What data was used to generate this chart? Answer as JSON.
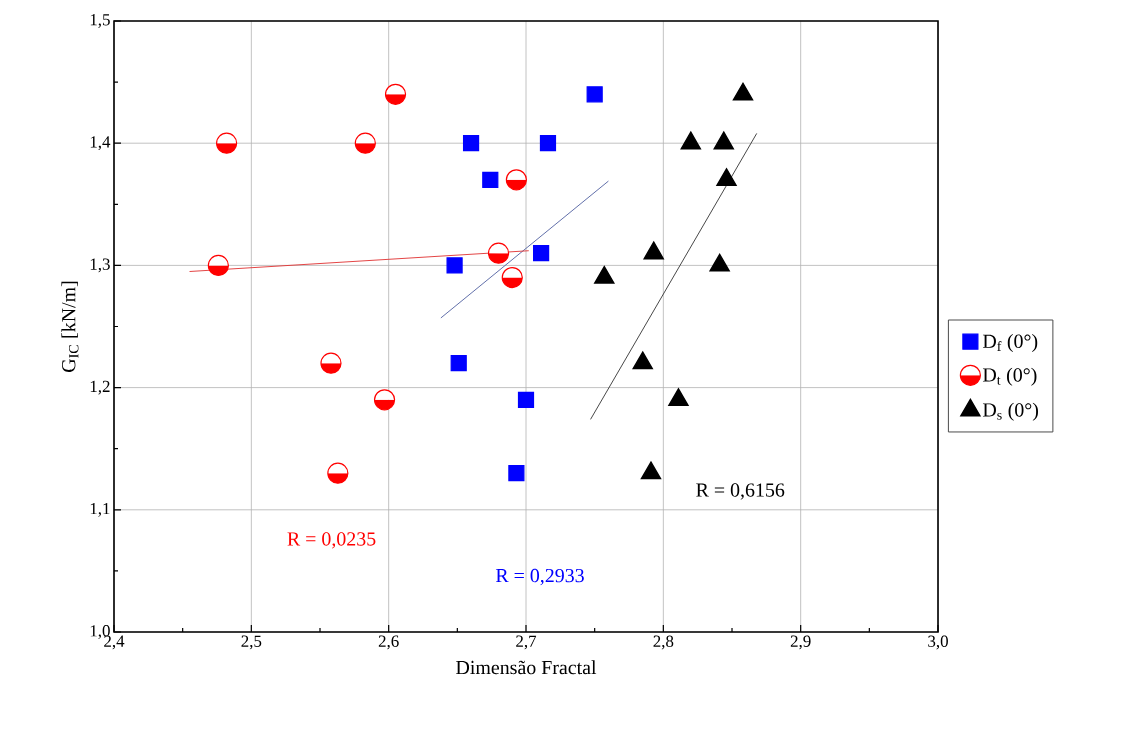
{
  "chart_data": {
    "type": "scatter",
    "xlabel": "Dimensão Fractal",
    "ylabel": "G$_{IC}$ [kN/m]",
    "xlim": [
      2.4,
      3.0
    ],
    "ylim": [
      1.0,
      1.5
    ],
    "xticks": [
      {
        "value": 2.4,
        "label": "2,4"
      },
      {
        "value": 2.5,
        "label": "2,5"
      },
      {
        "value": 2.6,
        "label": "2,6"
      },
      {
        "value": 2.7,
        "label": "2,7"
      },
      {
        "value": 2.8,
        "label": "2,8"
      },
      {
        "value": 2.9,
        "label": "2,9"
      },
      {
        "value": 3.0,
        "label": "3,0"
      }
    ],
    "yticks": [
      {
        "value": 1.0,
        "label": "1,0"
      },
      {
        "value": 1.1,
        "label": "1,1"
      },
      {
        "value": 1.2,
        "label": "1,2"
      },
      {
        "value": 1.3,
        "label": "1,3"
      },
      {
        "value": 1.4,
        "label": "1,4"
      },
      {
        "value": 1.5,
        "label": "1,5"
      }
    ],
    "grid": true,
    "legend": "right",
    "series": [
      {
        "name": "D$_{f}$ (0°)",
        "color": "#0000ff",
        "marker": "square",
        "x": [
          2.66,
          2.674,
          2.648,
          2.651,
          2.75,
          2.716,
          2.711,
          2.7,
          2.693
        ],
        "values": [
          1.4,
          1.37,
          1.3,
          1.22,
          1.44,
          1.4,
          1.31,
          1.19,
          1.13
        ]
      },
      {
        "name": "D$_{t}$ (0°)",
        "color": "#ff0000",
        "marker": "circle",
        "x": [
          2.482,
          2.583,
          2.605,
          2.476,
          2.693,
          2.68,
          2.69,
          2.558,
          2.597,
          2.563
        ],
        "values": [
          1.4,
          1.4,
          1.44,
          1.3,
          1.37,
          1.31,
          1.29,
          1.22,
          1.19,
          1.13
        ]
      },
      {
        "name": "D$_{s}$ (0°)",
        "color": "#000000",
        "marker": "triangle",
        "x": [
          2.858,
          2.82,
          2.844,
          2.846,
          2.793,
          2.757,
          2.841,
          2.785,
          2.811,
          2.791
        ],
        "values": [
          1.44,
          1.4,
          1.4,
          1.37,
          1.31,
          1.29,
          1.3,
          1.22,
          1.19,
          1.13
        ]
      },
      {
        "type": "line",
        "color": "#5060a0",
        "marker": "none",
        "x": [
          2.638,
          2.76
        ],
        "values": [
          1.257,
          1.369
        ]
      },
      {
        "type": "line",
        "color": "#e03030",
        "marker": "none",
        "x": [
          2.455,
          2.702
        ],
        "values": [
          1.295,
          1.312
        ]
      },
      {
        "type": "line",
        "color": "#333333",
        "marker": "none",
        "x": [
          2.747,
          2.868
        ],
        "values": [
          1.174,
          1.408
        ]
      }
    ],
    "annotations": [
      "R = 0,2933",
      "R = 0,0235",
      "R = 0,6156"
    ]
  }
}
